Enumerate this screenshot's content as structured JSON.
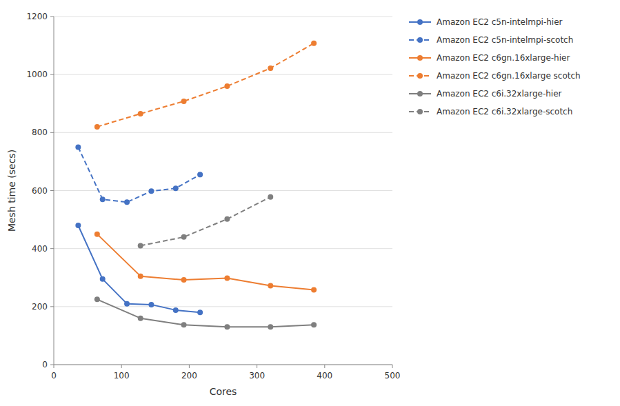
{
  "chart_data": {
    "type": "line",
    "xlabel": "Cores",
    "ylabel": "Mesh time (secs)",
    "xlim": [
      0,
      500
    ],
    "ylim": [
      0,
      1200
    ],
    "xticks": [
      0,
      100,
      200,
      300,
      400,
      500
    ],
    "yticks": [
      0,
      200,
      400,
      600,
      800,
      1000,
      1200
    ],
    "grid": "y",
    "legend": "right",
    "series": [
      {
        "name": "Amazon EC2 c5n-intelmpi-hier",
        "color": "#4472C4",
        "line_style": "solid",
        "marker": "circle",
        "x": [
          36,
          72,
          108,
          144,
          180,
          216
        ],
        "values": [
          480,
          295,
          210,
          207,
          188,
          180
        ]
      },
      {
        "name": "Amazon EC2 c5n-intelmpi-scotch",
        "color": "#4472C4",
        "line_style": "dashed",
        "marker": "circle",
        "x": [
          36,
          72,
          108,
          144,
          180,
          216
        ],
        "values": [
          750,
          570,
          560,
          598,
          608,
          655
        ]
      },
      {
        "name": "Amazon EC2 c6gn.16xlarge-hier",
        "color": "#ED7D31",
        "line_style": "solid",
        "marker": "circle",
        "x": [
          64,
          128,
          192,
          256,
          320,
          384
        ],
        "values": [
          450,
          305,
          292,
          298,
          272,
          258
        ]
      },
      {
        "name": "Amazon EC2 c6gn.16xlarge scotch",
        "color": "#ED7D31",
        "line_style": "dashed",
        "marker": "circle",
        "x": [
          64,
          128,
          192,
          256,
          320,
          384
        ],
        "values": [
          820,
          865,
          908,
          960,
          1022,
          1108
        ]
      },
      {
        "name": "Amazon EC2 c6i.32xlarge-hier",
        "color": "#7F7F7F",
        "line_style": "solid",
        "marker": "circle",
        "x": [
          64,
          128,
          192,
          256,
          320,
          384
        ],
        "values": [
          225,
          160,
          137,
          130,
          130,
          137
        ]
      },
      {
        "name": "Amazon EC2 c6i.32xlarge-scotch",
        "color": "#7F7F7F",
        "line_style": "dashed",
        "marker": "circle",
        "x": [
          128,
          192,
          256,
          320
        ],
        "values": [
          410,
          440,
          502,
          578
        ]
      }
    ]
  }
}
